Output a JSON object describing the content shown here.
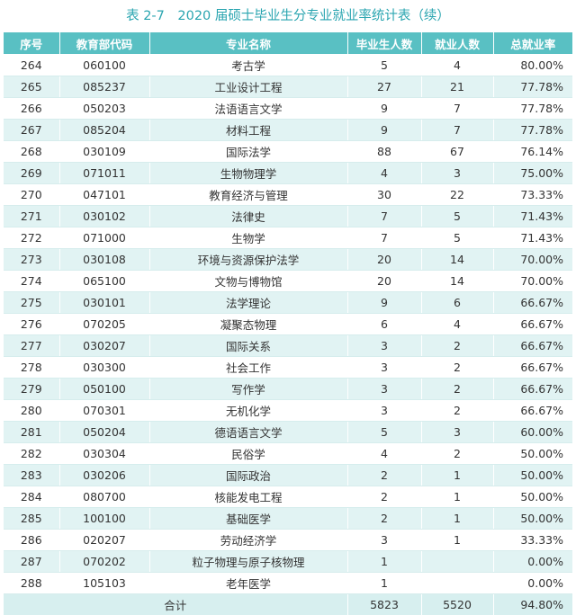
{
  "caption": "表 2-7　2020 届硕士毕业生分专业就业率统计表（续）",
  "headers": [
    "序号",
    "教育部代码",
    "专业名称",
    "毕业生人数",
    "就业人数",
    "总就业率"
  ],
  "rows": [
    [
      "264",
      "060100",
      "考古学",
      "5",
      "4",
      "80.00%"
    ],
    [
      "265",
      "085237",
      "工业设计工程",
      "27",
      "21",
      "77.78%"
    ],
    [
      "266",
      "050203",
      "法语语言文学",
      "9",
      "7",
      "77.78%"
    ],
    [
      "267",
      "085204",
      "材料工程",
      "9",
      "7",
      "77.78%"
    ],
    [
      "268",
      "030109",
      "国际法学",
      "88",
      "67",
      "76.14%"
    ],
    [
      "269",
      "071011",
      "生物物理学",
      "4",
      "3",
      "75.00%"
    ],
    [
      "270",
      "047101",
      "教育经济与管理",
      "30",
      "22",
      "73.33%"
    ],
    [
      "271",
      "030102",
      "法律史",
      "7",
      "5",
      "71.43%"
    ],
    [
      "272",
      "071000",
      "生物学",
      "7",
      "5",
      "71.43%"
    ],
    [
      "273",
      "030108",
      "环境与资源保护法学",
      "20",
      "14",
      "70.00%"
    ],
    [
      "274",
      "065100",
      "文物与博物馆",
      "20",
      "14",
      "70.00%"
    ],
    [
      "275",
      "030101",
      "法学理论",
      "9",
      "6",
      "66.67%"
    ],
    [
      "276",
      "070205",
      "凝聚态物理",
      "6",
      "4",
      "66.67%"
    ],
    [
      "277",
      "030207",
      "国际关系",
      "3",
      "2",
      "66.67%"
    ],
    [
      "278",
      "030300",
      "社会工作",
      "3",
      "2",
      "66.67%"
    ],
    [
      "279",
      "050100",
      "写作学",
      "3",
      "2",
      "66.67%"
    ],
    [
      "280",
      "070301",
      "无机化学",
      "3",
      "2",
      "66.67%"
    ],
    [
      "281",
      "050204",
      "德语语言文学",
      "5",
      "3",
      "60.00%"
    ],
    [
      "282",
      "030304",
      "民俗学",
      "4",
      "2",
      "50.00%"
    ],
    [
      "283",
      "030206",
      "国际政治",
      "2",
      "1",
      "50.00%"
    ],
    [
      "284",
      "080700",
      "核能发电工程",
      "2",
      "1",
      "50.00%"
    ],
    [
      "285",
      "100100",
      "基础医学",
      "2",
      "1",
      "50.00%"
    ],
    [
      "286",
      "020207",
      "劳动经济学",
      "3",
      "1",
      "33.33%"
    ],
    [
      "287",
      "070202",
      "粒子物理与原子核物理",
      "1",
      "",
      "0.00%"
    ],
    [
      "288",
      "105103",
      "老年医学",
      "1",
      "",
      "0.00%"
    ]
  ],
  "total": {
    "label": "合计",
    "graduates": "5823",
    "employed": "5520",
    "rate": "94.80%"
  }
}
